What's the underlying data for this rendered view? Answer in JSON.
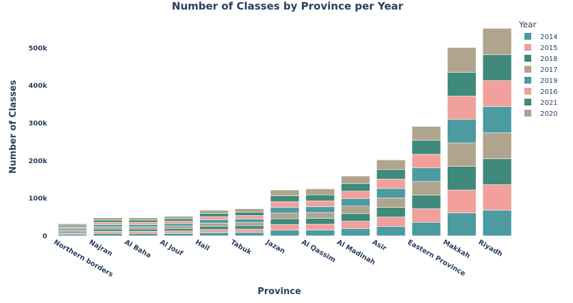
{
  "chart_data": {
    "type": "bar",
    "title": "Number of Classes by Province per Year",
    "xlabel": "Province",
    "ylabel": "Number of Classes",
    "ylim": [
      0,
      560000
    ],
    "yticks": [
      0,
      100000,
      200000,
      300000,
      400000,
      500000
    ],
    "ytick_labels": [
      "0",
      "100k",
      "200k",
      "300k",
      "400k",
      "500k"
    ],
    "legend_title": "Year",
    "legend_position": "right",
    "grid": false,
    "categories": [
      "Northern borders",
      "Najran",
      "Al Baha",
      "Al Jouf",
      "Hail",
      "Tabuk",
      "Jazan",
      "Al Qassim",
      "Al Madinah",
      "Asir",
      "Eastern Province",
      "Makkah",
      "Riyadh"
    ],
    "series": [
      {
        "name": "2014",
        "color": "#4c9ba1",
        "values": [
          4000,
          6000,
          6000,
          6500,
          8500,
          9000,
          15000,
          15500,
          19500,
          25000,
          36000,
          61000,
          68000
        ]
      },
      {
        "name": "2015",
        "color": "#f1a09c",
        "values": [
          4000,
          6000,
          6000,
          6500,
          8500,
          9000,
          15000,
          15500,
          19500,
          25000,
          36000,
          61000,
          68000
        ]
      },
      {
        "name": "2018",
        "color": "#3f8a7a",
        "values": [
          4000,
          6000,
          6000,
          6500,
          8500,
          9000,
          15500,
          15500,
          20000,
          25500,
          36500,
          63000,
          69000
        ]
      },
      {
        "name": "2017",
        "color": "#b0a48e",
        "values": [
          4000,
          6000,
          6000,
          6500,
          8500,
          9000,
          15000,
          15500,
          20000,
          25000,
          36000,
          62000,
          69000
        ]
      },
      {
        "name": "2019",
        "color": "#4c9ba1",
        "values": [
          4000,
          6000,
          6000,
          6500,
          8500,
          9000,
          15500,
          15500,
          20000,
          25500,
          36500,
          63000,
          70000
        ]
      },
      {
        "name": "2016",
        "color": "#f1a09c",
        "values": [
          4000,
          6000,
          6000,
          6500,
          8500,
          9000,
          15000,
          15500,
          20000,
          25000,
          36000,
          62000,
          69000
        ]
      },
      {
        "name": "2021",
        "color": "#3f8a7a",
        "values": [
          4000,
          6000,
          6000,
          6500,
          8500,
          9000,
          15500,
          16000,
          20000,
          25500,
          37000,
          63000,
          69000
        ]
      },
      {
        "name": "2020",
        "color": "#b0a48e",
        "values": [
          4000,
          6000,
          6000,
          6500,
          8500,
          9000,
          15500,
          16000,
          20000,
          25500,
          37000,
          66000,
          70000
        ]
      }
    ]
  }
}
